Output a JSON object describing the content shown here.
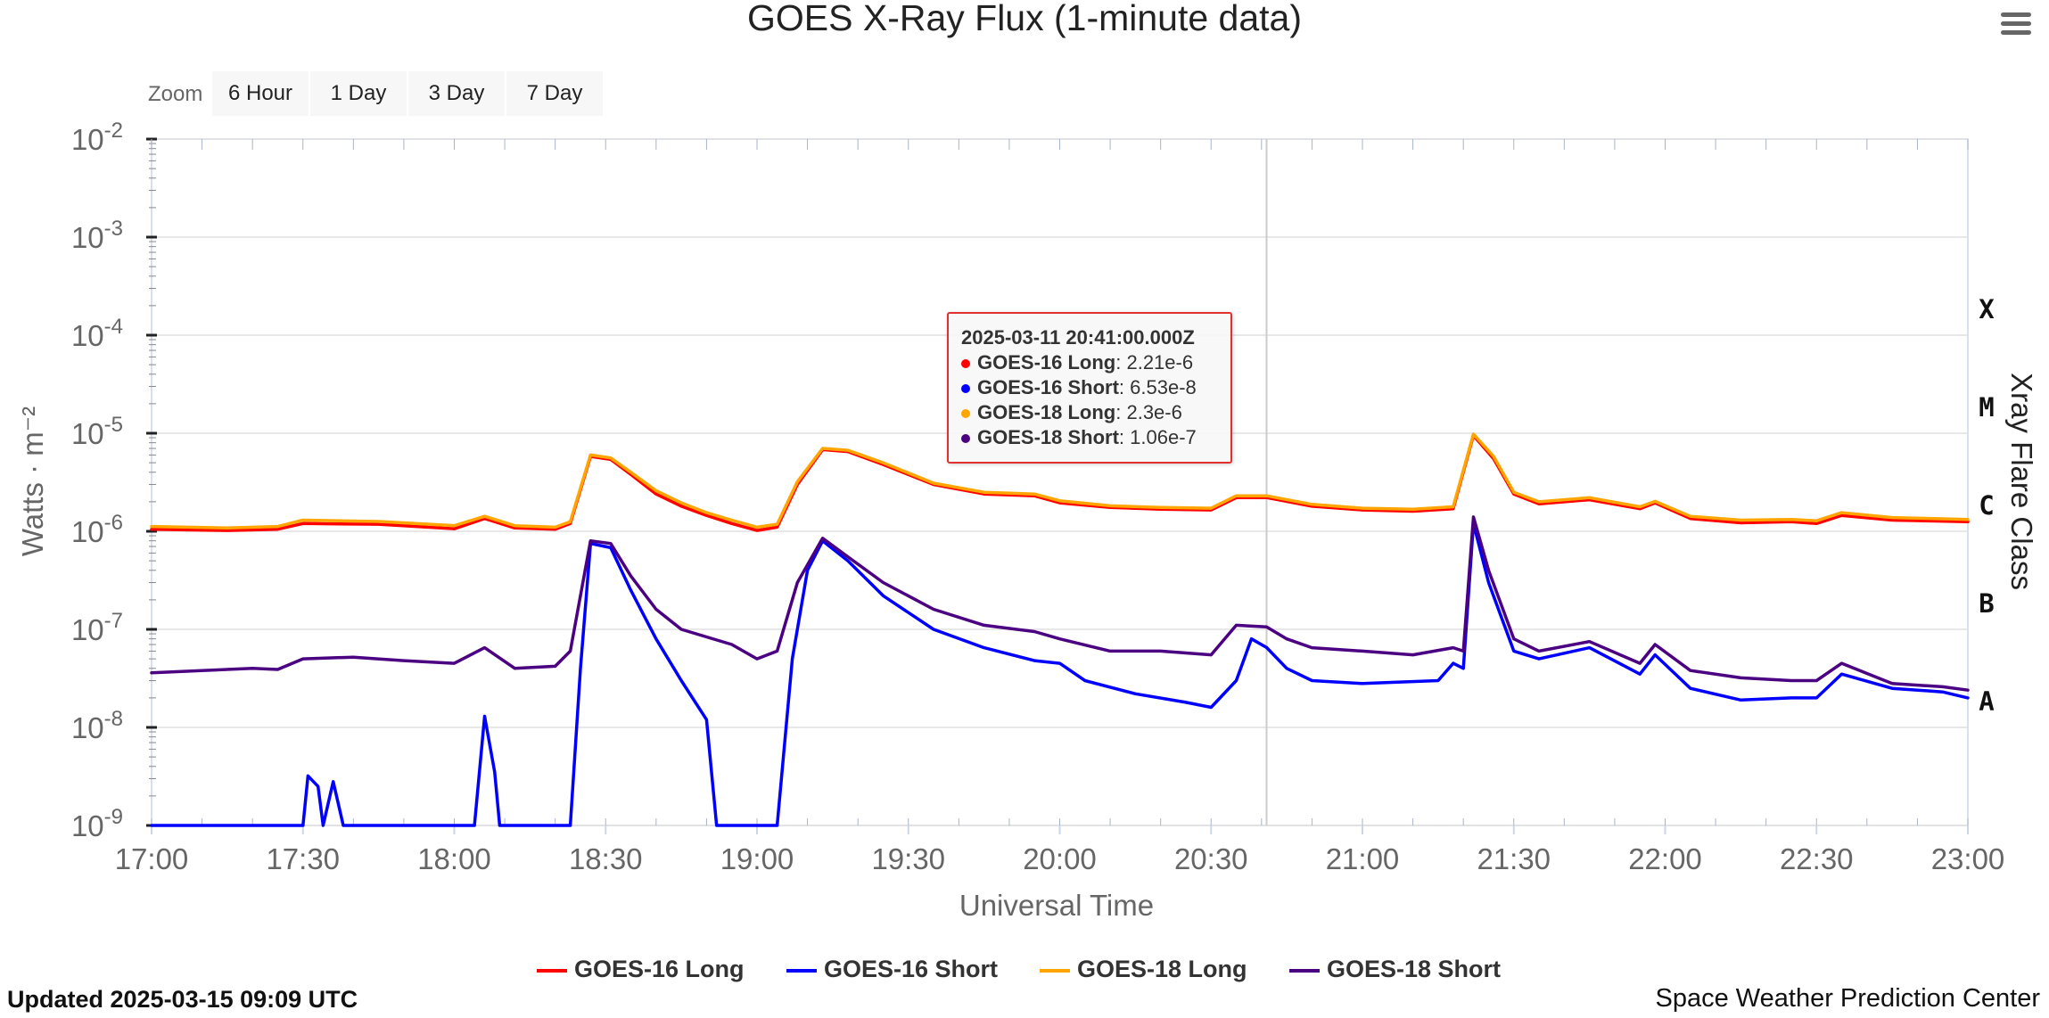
{
  "header": {
    "title": "GOES X-Ray Flux (1-minute data)"
  },
  "menu": {
    "icon": "hamburger-icon"
  },
  "zoom": {
    "label": "Zoom",
    "buttons": [
      "6 Hour",
      "1 Day",
      "3 Day",
      "7 Day"
    ]
  },
  "tooltip": {
    "title": "2025-03-11 20:41:00.000Z",
    "rows": [
      {
        "name": "GOES-16 Long",
        "value": ": 2.21e-6",
        "color": "#ff0000"
      },
      {
        "name": "GOES-16 Short",
        "value": ": 6.53e-8",
        "color": "#0000ff"
      },
      {
        "name": "GOES-18 Long",
        "value": ": 2.3e-6",
        "color": "#ffa500"
      },
      {
        "name": "GOES-18 Short",
        "value": ": 1.06e-7",
        "color": "#4b0082"
      }
    ]
  },
  "footer": {
    "updated": "Updated 2025-03-15 09:09 UTC",
    "credit": "Space Weather Prediction Center"
  },
  "chart_data": {
    "type": "line",
    "title": "GOES X-Ray Flux (1-minute data)",
    "xlabel": "Universal Time",
    "ylabel": "Watts · m⁻²",
    "y2label": "Xray Flare Class",
    "yscale": "log",
    "ylim": [
      1e-09,
      0.01
    ],
    "xlim": [
      "17:00",
      "23:00"
    ],
    "x_ticks": [
      "17:00",
      "17:30",
      "18:00",
      "18:30",
      "19:00",
      "19:30",
      "20:00",
      "20:30",
      "21:00",
      "21:30",
      "22:00",
      "22:30",
      "23:00"
    ],
    "y_ticks": [
      {
        "base": "10",
        "exp": "-2"
      },
      {
        "base": "10",
        "exp": "-3"
      },
      {
        "base": "10",
        "exp": "-4"
      },
      {
        "base": "10",
        "exp": "-5"
      },
      {
        "base": "10",
        "exp": "-6"
      },
      {
        "base": "10",
        "exp": "-7"
      },
      {
        "base": "10",
        "exp": "-8"
      },
      {
        "base": "10",
        "exp": "-9"
      }
    ],
    "flare_classes": [
      {
        "label": "X",
        "value": 0.0001
      },
      {
        "label": "M",
        "value": 1e-05
      },
      {
        "label": "C",
        "value": 1e-06
      },
      {
        "label": "B",
        "value": 1e-07
      },
      {
        "label": "A",
        "value": 1e-08
      }
    ],
    "crosshair_x": "20:41",
    "grid": true,
    "legend_position": "bottom",
    "series": [
      {
        "name": "GOES-16 Long",
        "color": "#ff0000",
        "points": [
          [
            "17:00",
            1.05e-06
          ],
          [
            "17:15",
            1.02e-06
          ],
          [
            "17:25",
            1.05e-06
          ],
          [
            "17:30",
            1.2e-06
          ],
          [
            "17:45",
            1.18e-06
          ],
          [
            "18:00",
            1.06e-06
          ],
          [
            "18:06",
            1.35e-06
          ],
          [
            "18:12",
            1.08e-06
          ],
          [
            "18:20",
            1.05e-06
          ],
          [
            "18:23",
            1.2e-06
          ],
          [
            "18:27",
            5.8e-06
          ],
          [
            "18:31",
            5.4e-06
          ],
          [
            "18:35",
            3.8e-06
          ],
          [
            "18:40",
            2.4e-06
          ],
          [
            "18:45",
            1.8e-06
          ],
          [
            "18:50",
            1.45e-06
          ],
          [
            "18:55",
            1.2e-06
          ],
          [
            "19:00",
            1.02e-06
          ],
          [
            "19:04",
            1.1e-06
          ],
          [
            "19:08",
            3e-06
          ],
          [
            "19:13",
            6.8e-06
          ],
          [
            "19:18",
            6.5e-06
          ],
          [
            "19:25",
            4.8e-06
          ],
          [
            "19:35",
            3e-06
          ],
          [
            "19:45",
            2.4e-06
          ],
          [
            "19:55",
            2.3e-06
          ],
          [
            "20:00",
            1.95e-06
          ],
          [
            "20:10",
            1.75e-06
          ],
          [
            "20:20",
            1.68e-06
          ],
          [
            "20:30",
            1.65e-06
          ],
          [
            "20:35",
            2.2e-06
          ],
          [
            "20:41",
            2.21e-06
          ],
          [
            "20:50",
            1.8e-06
          ],
          [
            "21:00",
            1.65e-06
          ],
          [
            "21:10",
            1.6e-06
          ],
          [
            "21:18",
            1.7e-06
          ],
          [
            "21:22",
            9.5e-06
          ],
          [
            "21:26",
            5.5e-06
          ],
          [
            "21:30",
            2.4e-06
          ],
          [
            "21:35",
            1.9e-06
          ],
          [
            "21:45",
            2.1e-06
          ],
          [
            "21:55",
            1.7e-06
          ],
          [
            "21:58",
            1.95e-06
          ],
          [
            "22:05",
            1.35e-06
          ],
          [
            "22:15",
            1.22e-06
          ],
          [
            "22:25",
            1.25e-06
          ],
          [
            "22:30",
            1.2e-06
          ],
          [
            "22:35",
            1.45e-06
          ],
          [
            "22:45",
            1.3e-06
          ],
          [
            "23:00",
            1.25e-06
          ]
        ]
      },
      {
        "name": "GOES-16 Short",
        "color": "#0000ff",
        "points": [
          [
            "17:00",
            1e-09
          ],
          [
            "17:30",
            1e-09
          ],
          [
            "17:31",
            3.2e-09
          ],
          [
            "17:33",
            2.5e-09
          ],
          [
            "17:34",
            1e-09
          ],
          [
            "17:36",
            2.8e-09
          ],
          [
            "17:38",
            1e-09
          ],
          [
            "18:04",
            1e-09
          ],
          [
            "18:06",
            1.3e-08
          ],
          [
            "18:08",
            3.5e-09
          ],
          [
            "18:09",
            1e-09
          ],
          [
            "18:23",
            1e-09
          ],
          [
            "18:25",
            4e-08
          ],
          [
            "18:27",
            7.5e-07
          ],
          [
            "18:31",
            6.8e-07
          ],
          [
            "18:35",
            2.5e-07
          ],
          [
            "18:40",
            8e-08
          ],
          [
            "18:45",
            3e-08
          ],
          [
            "18:50",
            1.2e-08
          ],
          [
            "18:52",
            1e-09
          ],
          [
            "19:04",
            1e-09
          ],
          [
            "19:07",
            5e-08
          ],
          [
            "19:10",
            4e-07
          ],
          [
            "19:13",
            8e-07
          ],
          [
            "19:18",
            5e-07
          ],
          [
            "19:25",
            2.2e-07
          ],
          [
            "19:35",
            1e-07
          ],
          [
            "19:45",
            6.5e-08
          ],
          [
            "19:55",
            4.8e-08
          ],
          [
            "20:00",
            4.5e-08
          ],
          [
            "20:05",
            3e-08
          ],
          [
            "20:15",
            2.2e-08
          ],
          [
            "20:25",
            1.8e-08
          ],
          [
            "20:30",
            1.6e-08
          ],
          [
            "20:35",
            3e-08
          ],
          [
            "20:38",
            8e-08
          ],
          [
            "20:41",
            6.53e-08
          ],
          [
            "20:45",
            4e-08
          ],
          [
            "20:50",
            3e-08
          ],
          [
            "21:00",
            2.8e-08
          ],
          [
            "21:15",
            3e-08
          ],
          [
            "21:18",
            4.5e-08
          ],
          [
            "21:20",
            4e-08
          ],
          [
            "21:22",
            1.2e-06
          ],
          [
            "21:25",
            3e-07
          ],
          [
            "21:30",
            6e-08
          ],
          [
            "21:35",
            5e-08
          ],
          [
            "21:45",
            6.5e-08
          ],
          [
            "21:55",
            3.5e-08
          ],
          [
            "21:58",
            5.5e-08
          ],
          [
            "22:05",
            2.5e-08
          ],
          [
            "22:15",
            1.9e-08
          ],
          [
            "22:25",
            2e-08
          ],
          [
            "22:30",
            2e-08
          ],
          [
            "22:35",
            3.5e-08
          ],
          [
            "22:45",
            2.5e-08
          ],
          [
            "22:55",
            2.3e-08
          ],
          [
            "23:00",
            2e-08
          ]
        ]
      },
      {
        "name": "GOES-18 Long",
        "color": "#ffa500",
        "points": [
          [
            "17:00",
            1.12e-06
          ],
          [
            "17:15",
            1.08e-06
          ],
          [
            "17:25",
            1.12e-06
          ],
          [
            "17:30",
            1.3e-06
          ],
          [
            "17:45",
            1.26e-06
          ],
          [
            "18:00",
            1.14e-06
          ],
          [
            "18:06",
            1.42e-06
          ],
          [
            "18:12",
            1.14e-06
          ],
          [
            "18:20",
            1.1e-06
          ],
          [
            "18:23",
            1.25e-06
          ],
          [
            "18:27",
            6e-06
          ],
          [
            "18:31",
            5.6e-06
          ],
          [
            "18:35",
            4e-06
          ],
          [
            "18:40",
            2.6e-06
          ],
          [
            "18:45",
            1.95e-06
          ],
          [
            "18:50",
            1.55e-06
          ],
          [
            "18:55",
            1.3e-06
          ],
          [
            "19:00",
            1.1e-06
          ],
          [
            "19:04",
            1.18e-06
          ],
          [
            "19:08",
            3.2e-06
          ],
          [
            "19:13",
            7e-06
          ],
          [
            "19:18",
            6.7e-06
          ],
          [
            "19:25",
            5e-06
          ],
          [
            "19:35",
            3.1e-06
          ],
          [
            "19:45",
            2.5e-06
          ],
          [
            "19:55",
            2.4e-06
          ],
          [
            "20:00",
            2.05e-06
          ],
          [
            "20:10",
            1.82e-06
          ],
          [
            "20:20",
            1.75e-06
          ],
          [
            "20:30",
            1.72e-06
          ],
          [
            "20:35",
            2.3e-06
          ],
          [
            "20:41",
            2.3e-06
          ],
          [
            "20:50",
            1.88e-06
          ],
          [
            "21:00",
            1.72e-06
          ],
          [
            "21:10",
            1.68e-06
          ],
          [
            "21:18",
            1.78e-06
          ],
          [
            "21:22",
            9.8e-06
          ],
          [
            "21:26",
            5.8e-06
          ],
          [
            "21:30",
            2.5e-06
          ],
          [
            "21:35",
            2e-06
          ],
          [
            "21:45",
            2.2e-06
          ],
          [
            "21:55",
            1.78e-06
          ],
          [
            "21:58",
            2.02e-06
          ],
          [
            "22:05",
            1.42e-06
          ],
          [
            "22:15",
            1.3e-06
          ],
          [
            "22:25",
            1.32e-06
          ],
          [
            "22:30",
            1.28e-06
          ],
          [
            "22:35",
            1.55e-06
          ],
          [
            "22:45",
            1.38e-06
          ],
          [
            "23:00",
            1.32e-06
          ]
        ]
      },
      {
        "name": "GOES-18 Short",
        "color": "#4b0082",
        "points": [
          [
            "17:00",
            3.6e-08
          ],
          [
            "17:10",
            3.8e-08
          ],
          [
            "17:20",
            4e-08
          ],
          [
            "17:25",
            3.9e-08
          ],
          [
            "17:30",
            5e-08
          ],
          [
            "17:40",
            5.2e-08
          ],
          [
            "17:50",
            4.8e-08
          ],
          [
            "18:00",
            4.5e-08
          ],
          [
            "18:06",
            6.5e-08
          ],
          [
            "18:12",
            4e-08
          ],
          [
            "18:20",
            4.2e-08
          ],
          [
            "18:23",
            6e-08
          ],
          [
            "18:27",
            8e-07
          ],
          [
            "18:31",
            7.5e-07
          ],
          [
            "18:35",
            3.5e-07
          ],
          [
            "18:40",
            1.6e-07
          ],
          [
            "18:45",
            1e-07
          ],
          [
            "18:55",
            7e-08
          ],
          [
            "19:00",
            5e-08
          ],
          [
            "19:04",
            6e-08
          ],
          [
            "19:08",
            3e-07
          ],
          [
            "19:13",
            8.5e-07
          ],
          [
            "19:18",
            5.5e-07
          ],
          [
            "19:25",
            3e-07
          ],
          [
            "19:35",
            1.6e-07
          ],
          [
            "19:45",
            1.1e-07
          ],
          [
            "19:55",
            9.5e-08
          ],
          [
            "20:00",
            8e-08
          ],
          [
            "20:10",
            6e-08
          ],
          [
            "20:20",
            6e-08
          ],
          [
            "20:30",
            5.5e-08
          ],
          [
            "20:35",
            1.1e-07
          ],
          [
            "20:41",
            1.06e-07
          ],
          [
            "20:45",
            8e-08
          ],
          [
            "20:50",
            6.5e-08
          ],
          [
            "21:00",
            6e-08
          ],
          [
            "21:10",
            5.5e-08
          ],
          [
            "21:18",
            6.5e-08
          ],
          [
            "21:20",
            6e-08
          ],
          [
            "21:22",
            1.4e-06
          ],
          [
            "21:25",
            4e-07
          ],
          [
            "21:30",
            8e-08
          ],
          [
            "21:35",
            6e-08
          ],
          [
            "21:45",
            7.5e-08
          ],
          [
            "21:55",
            4.5e-08
          ],
          [
            "21:58",
            7e-08
          ],
          [
            "22:05",
            3.8e-08
          ],
          [
            "22:15",
            3.2e-08
          ],
          [
            "22:25",
            3e-08
          ],
          [
            "22:30",
            3e-08
          ],
          [
            "22:35",
            4.5e-08
          ],
          [
            "22:45",
            2.8e-08
          ],
          [
            "22:55",
            2.6e-08
          ],
          [
            "23:00",
            2.4e-08
          ]
        ]
      }
    ]
  }
}
